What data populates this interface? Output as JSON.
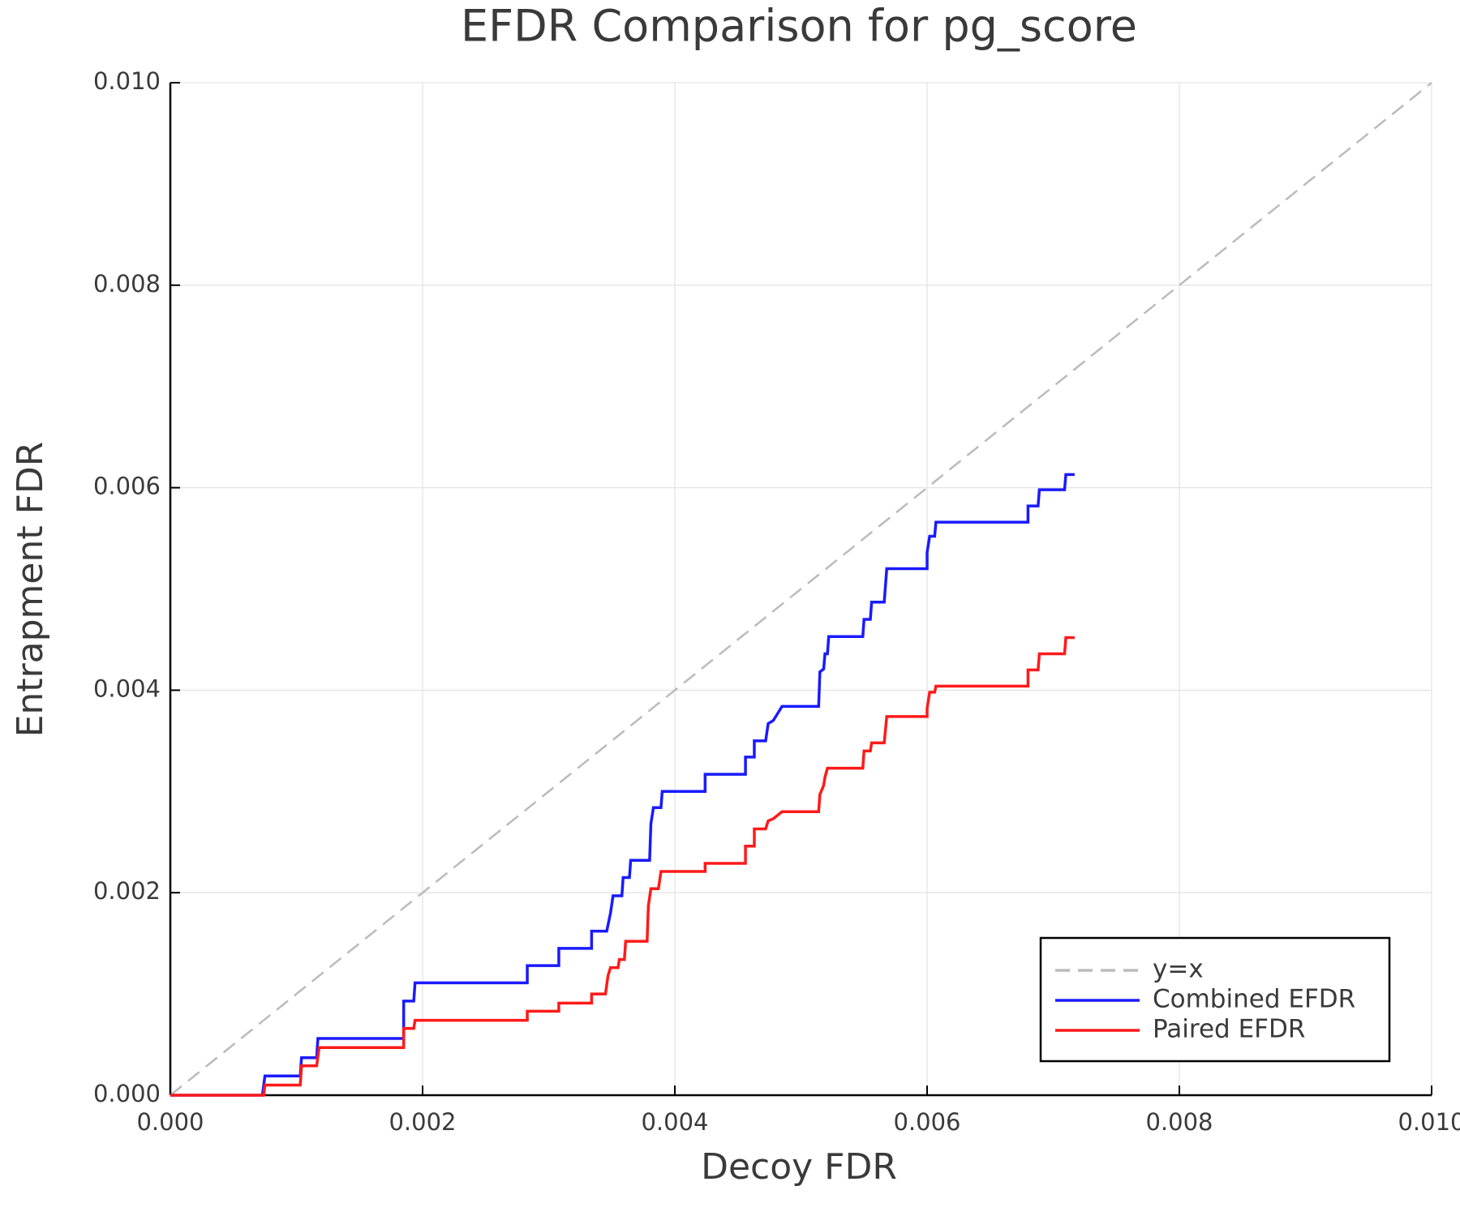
{
  "chart_data": {
    "type": "line",
    "title": "EFDR Comparison for pg_score",
    "x_label": "Decoy FDR",
    "y_label": "Entrapment FDR",
    "xlim": [
      0,
      0.01
    ],
    "ylim": [
      0,
      0.01
    ],
    "xticks": [
      {
        "value": 0,
        "label": "0.000"
      },
      {
        "value": 0.002,
        "label": "0.002"
      },
      {
        "value": 0.004,
        "label": "0.004"
      },
      {
        "value": 0.006,
        "label": "0.006"
      },
      {
        "value": 0.008,
        "label": "0.008"
      },
      {
        "value": 0.01,
        "label": "0.010"
      }
    ],
    "yticks": [
      {
        "value": 0,
        "label": "0.000"
      },
      {
        "value": 0.002,
        "label": "0.002"
      },
      {
        "value": 0.004,
        "label": "0.004"
      },
      {
        "value": 0.006,
        "label": "0.006"
      },
      {
        "value": 0.008,
        "label": "0.008"
      },
      {
        "value": 0.01,
        "label": "0.010"
      }
    ],
    "grid": true,
    "legend": "lower right",
    "series": [
      {
        "name": "y=x",
        "color": "#bbbbbb",
        "style": "dashed",
        "x": [
          0,
          0.01
        ],
        "values": [
          0,
          0.01
        ]
      },
      {
        "name": "Combined EFDR",
        "color": "#1a1aff",
        "style": "solid",
        "x": [
          0,
          0.00073,
          0.00075,
          0.00103,
          0.00104,
          0.00116,
          0.00117,
          0.00185,
          0.00185,
          0.00193,
          0.00194,
          0.00283,
          0.00283,
          0.00308,
          0.00308,
          0.00334,
          0.00334,
          0.00346,
          0.00349,
          0.00351,
          0.00358,
          0.00359,
          0.00364,
          0.00365,
          0.0038,
          0.00381,
          0.00383,
          0.00389,
          0.0039,
          0.00424,
          0.00424,
          0.00456,
          0.00456,
          0.00463,
          0.00463,
          0.00472,
          0.00474,
          0.00478,
          0.00485,
          0.00514,
          0.00515,
          0.00518,
          0.00519,
          0.00521,
          0.00522,
          0.00549,
          0.0055,
          0.00555,
          0.00556,
          0.00566,
          0.00568,
          0.006,
          0.006,
          0.00602,
          0.00606,
          0.00607,
          0.0068,
          0.0068,
          0.00688,
          0.00689,
          0.00709,
          0.0071,
          0.00717
        ],
        "values": [
          0,
          0,
          0.00019,
          0.00019,
          0.00037,
          0.00037,
          0.00056,
          0.00056,
          0.00093,
          0.00093,
          0.00111,
          0.00111,
          0.00128,
          0.00128,
          0.00145,
          0.00145,
          0.00162,
          0.00162,
          0.0018,
          0.00197,
          0.00197,
          0.00215,
          0.00215,
          0.00232,
          0.00232,
          0.00268,
          0.00284,
          0.00284,
          0.003,
          0.003,
          0.00317,
          0.00317,
          0.00334,
          0.00334,
          0.0035,
          0.0035,
          0.00367,
          0.0037,
          0.00384,
          0.00384,
          0.00418,
          0.00421,
          0.00436,
          0.00436,
          0.00453,
          0.00453,
          0.0047,
          0.0047,
          0.00487,
          0.00487,
          0.0052,
          0.0052,
          0.00536,
          0.00552,
          0.00552,
          0.00566,
          0.00566,
          0.00582,
          0.00582,
          0.00598,
          0.00598,
          0.00613,
          0.00613
        ]
      },
      {
        "name": "Paired EFDR",
        "color": "#ff1a1a",
        "style": "solid",
        "x": [
          0,
          0.00074,
          0.00075,
          0.00103,
          0.00104,
          0.00116,
          0.00118,
          0.00185,
          0.00185,
          0.00193,
          0.00194,
          0.00283,
          0.00283,
          0.00308,
          0.00308,
          0.00334,
          0.00334,
          0.00345,
          0.00347,
          0.00349,
          0.00355,
          0.00356,
          0.0036,
          0.00361,
          0.00378,
          0.00379,
          0.00381,
          0.00387,
          0.00389,
          0.00424,
          0.00424,
          0.00456,
          0.00456,
          0.00463,
          0.00463,
          0.00472,
          0.00474,
          0.00478,
          0.00485,
          0.00514,
          0.00515,
          0.00518,
          0.00519,
          0.00521,
          0.00549,
          0.0055,
          0.00555,
          0.00556,
          0.00566,
          0.00568,
          0.006,
          0.006,
          0.00602,
          0.00606,
          0.00607,
          0.0068,
          0.0068,
          0.00688,
          0.00689,
          0.00709,
          0.0071,
          0.00717
        ],
        "values": [
          0,
          0,
          0.0001,
          0.0001,
          0.00029,
          0.00029,
          0.00047,
          0.00047,
          0.00066,
          0.00066,
          0.00074,
          0.00074,
          0.00083,
          0.00083,
          0.00091,
          0.00091,
          0.001,
          0.001,
          0.00118,
          0.00126,
          0.00126,
          0.00134,
          0.00134,
          0.00152,
          0.00152,
          0.00187,
          0.00204,
          0.00204,
          0.00221,
          0.00221,
          0.00229,
          0.00229,
          0.00246,
          0.00246,
          0.00263,
          0.00263,
          0.00271,
          0.00273,
          0.0028,
          0.0028,
          0.00297,
          0.00306,
          0.00314,
          0.00323,
          0.00323,
          0.0034,
          0.0034,
          0.00348,
          0.00348,
          0.00374,
          0.00374,
          0.00382,
          0.00398,
          0.00398,
          0.00404,
          0.00404,
          0.0042,
          0.0042,
          0.00436,
          0.00436,
          0.00452,
          0.00452
        ]
      }
    ]
  }
}
